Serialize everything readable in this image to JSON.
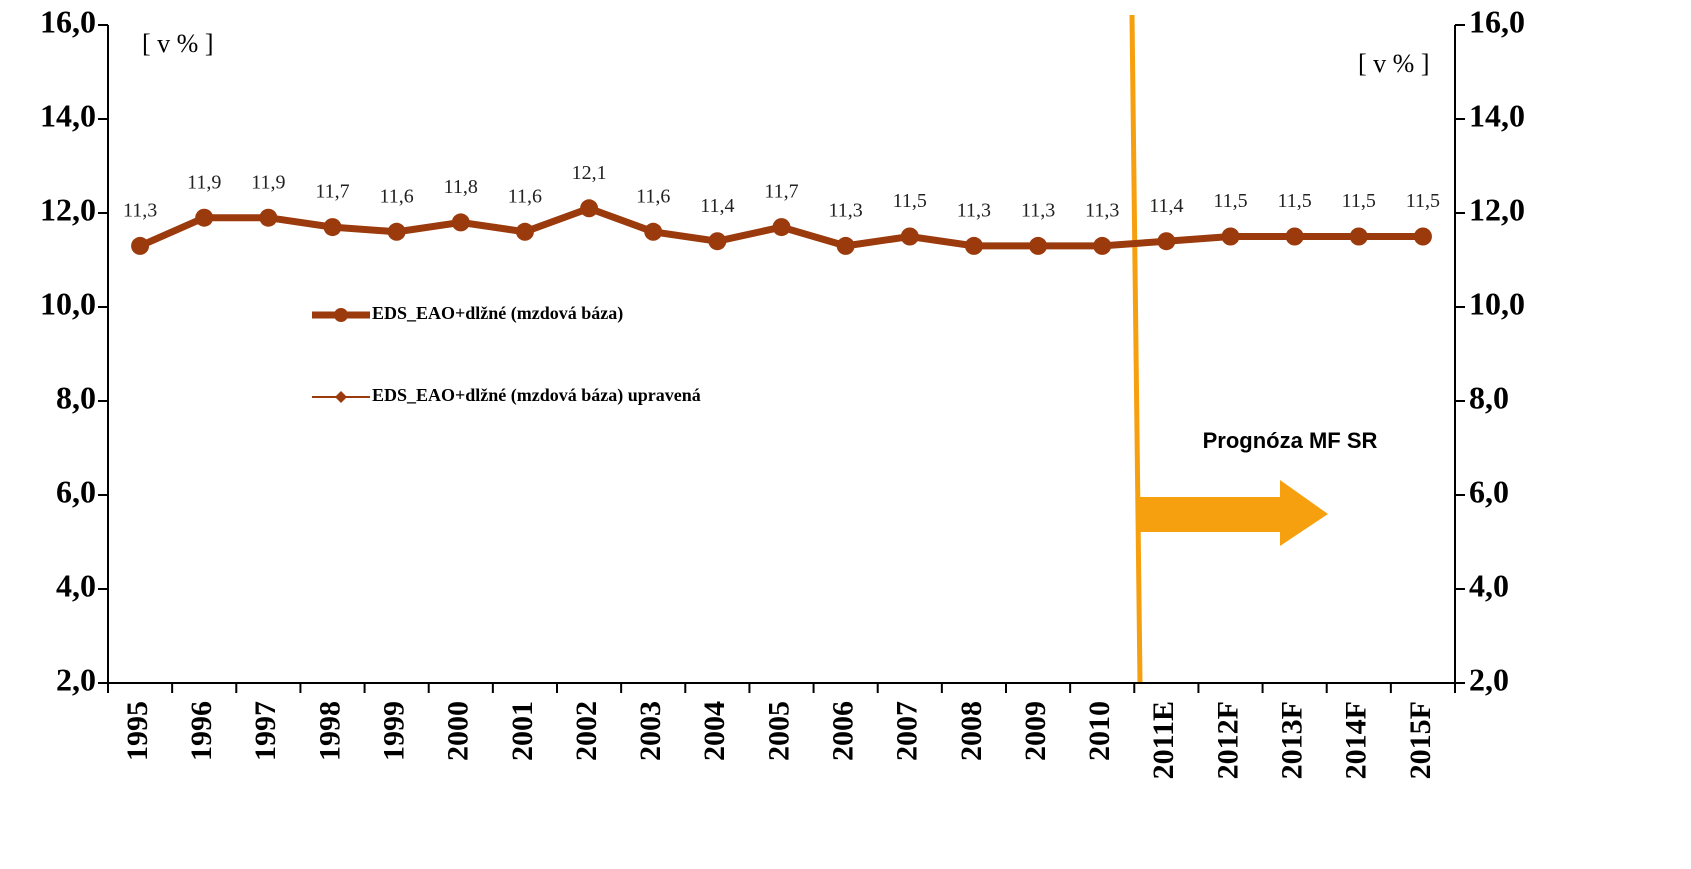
{
  "chart_data": {
    "type": "line",
    "categories": [
      "1995",
      "1996",
      "1997",
      "1998",
      "1999",
      "2000",
      "2001",
      "2002",
      "2003",
      "2004",
      "2005",
      "2006",
      "2007",
      "2008",
      "2009",
      "2010",
      "2011E",
      "2012F",
      "2013F",
      "2014F",
      "2015F"
    ],
    "series": [
      {
        "name": "EDS_EAO+dlžné (mzdová báza)",
        "color": "#9b3a0c",
        "values": [
          11.3,
          11.9,
          11.9,
          11.7,
          11.6,
          11.8,
          11.6,
          12.1,
          11.6,
          11.4,
          11.7,
          11.3,
          11.5,
          11.3,
          11.3,
          11.3,
          11.4,
          11.5,
          11.5,
          11.5,
          11.5
        ],
        "value_labels": [
          "11,3",
          "11,9",
          "11,9",
          "11,7",
          "11,6",
          "11,8",
          "11,6",
          "12,1",
          "11,6",
          "11,4",
          "11,7",
          "11,3",
          "11,5",
          "11,3",
          "11,3",
          "11,3",
          "11,4",
          "11,5",
          "11,5",
          "11,5",
          "11,5"
        ]
      },
      {
        "name": "EDS_EAO+dlžné (mzdová báza) upravená",
        "color": "#9b3a0c",
        "values": [
          11.3,
          11.9,
          11.9,
          11.7,
          11.6,
          11.8,
          11.6,
          12.1,
          11.6,
          11.4,
          11.7,
          11.3,
          11.5,
          11.3,
          11.3,
          11.3,
          11.4,
          11.5,
          11.5,
          11.5,
          11.5
        ]
      }
    ],
    "ylim": [
      2,
      16
    ],
    "yticks": [
      {
        "value": 2,
        "label": "2,0"
      },
      {
        "value": 4,
        "label": "4,0"
      },
      {
        "value": 6,
        "label": "6,0"
      },
      {
        "value": 8,
        "label": "8,0"
      },
      {
        "value": 10,
        "label": "10,0"
      },
      {
        "value": 12,
        "label": "12,0"
      },
      {
        "value": 14,
        "label": "14,0"
      },
      {
        "value": 16,
        "label": "16,0"
      }
    ],
    "y2lim": [
      2,
      16
    ],
    "y2ticks": [
      {
        "value": 2,
        "label": "2,0"
      },
      {
        "value": 4,
        "label": "4,0"
      },
      {
        "value": 6,
        "label": "6,0"
      },
      {
        "value": 8,
        "label": "8,0"
      },
      {
        "value": 10,
        "label": "10,0"
      },
      {
        "value": 12,
        "label": "12,0"
      },
      {
        "value": 14,
        "label": "14,0"
      },
      {
        "value": 16,
        "label": "16,0"
      }
    ],
    "unit_left": "[ v % ]",
    "unit_right": "[ v % ]",
    "annotation": "Prognóza MF SR"
  }
}
